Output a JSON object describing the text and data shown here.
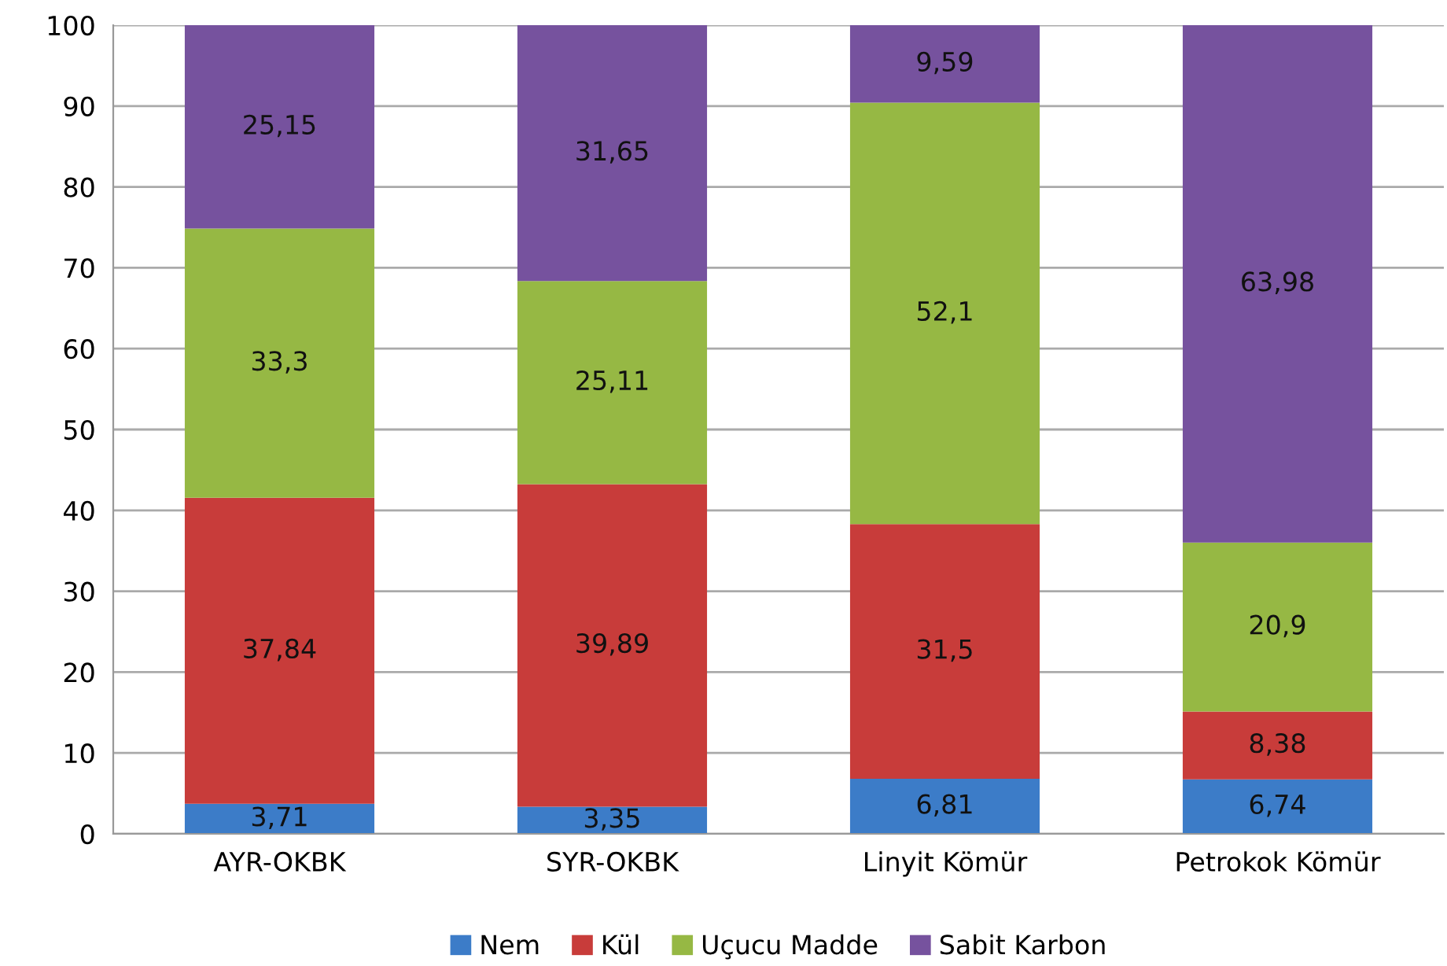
{
  "chart_data": {
    "type": "bar",
    "stacked": true,
    "categories": [
      "AYR-OKBK",
      "SYR-OKBK",
      "Linyit Kömür",
      "Petrokok Kömür"
    ],
    "series": [
      {
        "name": "Nem",
        "color": "#3c7cc8",
        "values": [
          3.71,
          3.35,
          6.81,
          6.74
        ],
        "value_labels": [
          "3,71",
          "3,35",
          "6,81",
          "6,74"
        ]
      },
      {
        "name": "Kül",
        "color": "#c83c3a",
        "values": [
          37.84,
          39.89,
          31.5,
          8.38
        ],
        "value_labels": [
          "37,84",
          "39,89",
          "31,5",
          "8,38"
        ]
      },
      {
        "name": "Uçucu Madde",
        "color": "#96b844",
        "values": [
          33.3,
          25.11,
          52.1,
          20.9
        ],
        "value_labels": [
          "33,3",
          "25,11",
          "52,1",
          "20,9"
        ]
      },
      {
        "name": "Sabit Karbon",
        "color": "#76529e",
        "values": [
          25.15,
          31.65,
          9.59,
          63.98
        ],
        "value_labels": [
          "25,15",
          "31,65",
          "9,59",
          "63,98"
        ]
      }
    ],
    "ylim": [
      0,
      100
    ],
    "yticks": [
      0,
      10,
      20,
      30,
      40,
      50,
      60,
      70,
      80,
      90,
      100
    ],
    "grid": "y",
    "legend": "bottom"
  }
}
